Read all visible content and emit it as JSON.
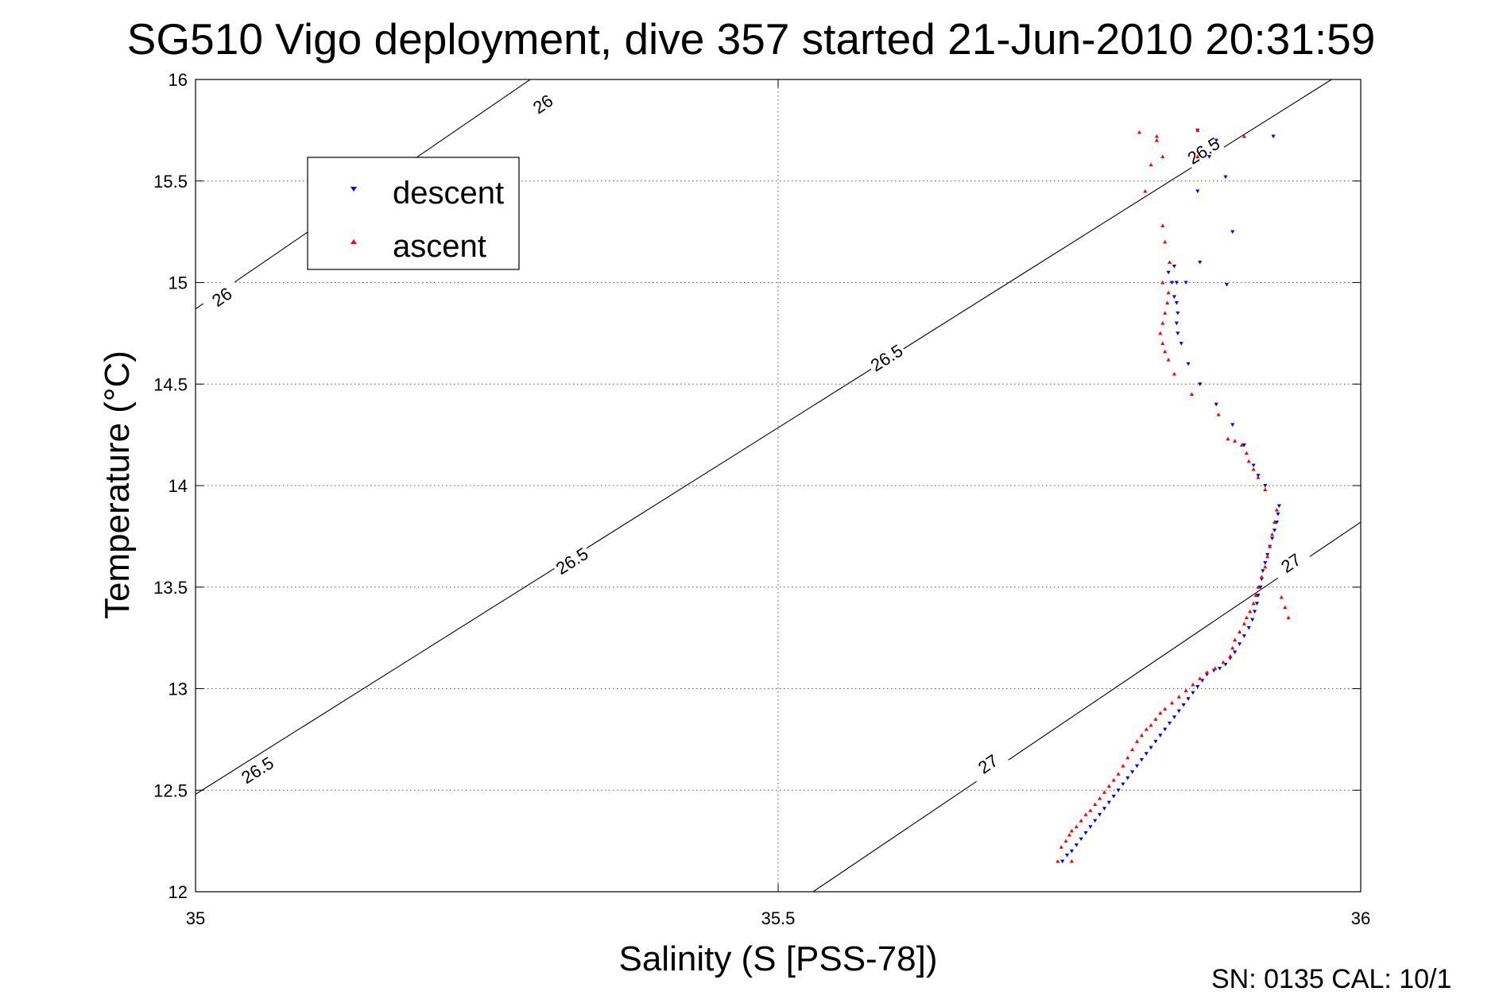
{
  "chart_data": {
    "type": "scatter",
    "title": "SG510 Vigo deployment, dive 357 started 21-Jun-2010 20:31:59",
    "xlabel": "Salinity (S [PSS-78])",
    "ylabel": "Temperature (°C)",
    "xlim": [
      35,
      36
    ],
    "ylim": [
      12,
      16
    ],
    "x_ticks": [
      "35",
      "35.5",
      "36"
    ],
    "y_ticks": [
      "12",
      "12.5",
      "13",
      "13.5",
      "14",
      "14.5",
      "15",
      "15.5",
      "16"
    ],
    "grid": true,
    "legend_position": "top-left",
    "footer": "SN: 0135  CAL: 10/1",
    "contours": [
      {
        "label": "26",
        "points": [
          [
            35.0,
            14.87
          ],
          [
            35.3,
            16.05
          ]
        ],
        "label_at": [
          [
            0.0225,
            14.93
          ],
          [
            0.298,
            15.88
          ]
        ]
      },
      {
        "label": "26.5",
        "points": [
          [
            35.0,
            12.48
          ],
          [
            35.975,
            16.0
          ]
        ],
        "label_at": [
          [
            0.053,
            12.6
          ],
          [
            0.323,
            13.63
          ],
          [
            0.593,
            14.63
          ],
          [
            0.865,
            15.65
          ]
        ]
      },
      {
        "label": "27",
        "points": [
          [
            35.53,
            12.0
          ],
          [
            36.0,
            13.82
          ]
        ],
        "label_at": [
          [
            0.68,
            12.63
          ],
          [
            0.94,
            13.62
          ]
        ]
      }
    ],
    "series": [
      {
        "name": "descent",
        "marker": "triangle-down",
        "color": "#0000ff",
        "points": [
          [
            35.744,
            12.15
          ],
          [
            35.748,
            12.18
          ],
          [
            35.752,
            12.2
          ],
          [
            35.756,
            12.23
          ],
          [
            35.76,
            12.26
          ],
          [
            35.764,
            12.29
          ],
          [
            35.768,
            12.32
          ],
          [
            35.772,
            12.35
          ],
          [
            35.776,
            12.38
          ],
          [
            35.78,
            12.41
          ],
          [
            35.784,
            12.44
          ],
          [
            35.788,
            12.47
          ],
          [
            35.792,
            12.5
          ],
          [
            35.796,
            12.53
          ],
          [
            35.8,
            12.56
          ],
          [
            35.804,
            12.59
          ],
          [
            35.808,
            12.62
          ],
          [
            35.812,
            12.65
          ],
          [
            35.816,
            12.68
          ],
          [
            35.82,
            12.71
          ],
          [
            35.824,
            12.74
          ],
          [
            35.828,
            12.77
          ],
          [
            35.832,
            12.8
          ],
          [
            35.836,
            12.83
          ],
          [
            35.84,
            12.86
          ],
          [
            35.844,
            12.89
          ],
          [
            35.848,
            12.92
          ],
          [
            35.852,
            12.95
          ],
          [
            35.856,
            12.98
          ],
          [
            35.86,
            13.01
          ],
          [
            35.864,
            13.04
          ],
          [
            35.868,
            13.07
          ],
          [
            35.874,
            13.09
          ],
          [
            35.879,
            13.1
          ],
          [
            35.884,
            13.12
          ],
          [
            35.888,
            13.15
          ],
          [
            35.892,
            13.18
          ],
          [
            35.896,
            13.22
          ],
          [
            35.9,
            13.26
          ],
          [
            35.904,
            13.3
          ],
          [
            35.907,
            13.34
          ],
          [
            35.909,
            13.38
          ],
          [
            35.911,
            13.42
          ],
          [
            35.912,
            13.46
          ],
          [
            35.914,
            13.5
          ],
          [
            35.915,
            13.54
          ],
          [
            35.916,
            13.58
          ],
          [
            35.918,
            13.62
          ],
          [
            35.92,
            13.66
          ],
          [
            35.922,
            13.7
          ],
          [
            35.924,
            13.74
          ],
          [
            35.926,
            13.78
          ],
          [
            35.928,
            13.82
          ],
          [
            35.929,
            13.86
          ],
          [
            35.93,
            13.9
          ],
          [
            35.918,
            14.0
          ],
          [
            35.912,
            14.05
          ],
          [
            35.908,
            14.1
          ],
          [
            35.9,
            14.2
          ],
          [
            35.89,
            14.3
          ],
          [
            35.876,
            14.4
          ],
          [
            35.862,
            14.5
          ],
          [
            35.852,
            14.6
          ],
          [
            35.846,
            14.7
          ],
          [
            35.843,
            14.75
          ],
          [
            35.842,
            14.8
          ],
          [
            35.843,
            14.85
          ],
          [
            35.842,
            14.9
          ],
          [
            35.84,
            14.93
          ],
          [
            35.838,
            15.0
          ],
          [
            35.842,
            15.0
          ],
          [
            35.85,
            15.0
          ],
          [
            35.84,
            15.08
          ],
          [
            35.835,
            15.05
          ],
          [
            35.862,
            15.1
          ],
          [
            35.885,
            14.99
          ],
          [
            35.89,
            15.25
          ],
          [
            35.884,
            15.52
          ],
          [
            35.86,
            15.45
          ],
          [
            35.87,
            15.62
          ],
          [
            35.86,
            15.75
          ],
          [
            35.876,
            15.7
          ],
          [
            35.925,
            15.72
          ]
        ]
      },
      {
        "name": "ascent",
        "marker": "triangle-up",
        "color": "#ff0000",
        "points": [
          [
            35.74,
            12.15
          ],
          [
            35.752,
            12.15
          ],
          [
            35.743,
            12.22
          ],
          [
            35.747,
            12.25
          ],
          [
            35.75,
            12.28
          ],
          [
            35.752,
            12.3
          ],
          [
            35.756,
            12.32
          ],
          [
            35.76,
            12.35
          ],
          [
            35.764,
            12.38
          ],
          [
            35.768,
            12.4
          ],
          [
            35.772,
            12.43
          ],
          [
            35.776,
            12.46
          ],
          [
            35.78,
            12.49
          ],
          [
            35.784,
            12.52
          ],
          [
            35.788,
            12.55
          ],
          [
            35.792,
            12.58
          ],
          [
            35.796,
            12.62
          ],
          [
            35.8,
            12.66
          ],
          [
            35.804,
            12.7
          ],
          [
            35.808,
            12.74
          ],
          [
            35.812,
            12.77
          ],
          [
            35.816,
            12.8
          ],
          [
            35.82,
            12.82
          ],
          [
            35.824,
            12.85
          ],
          [
            35.828,
            12.88
          ],
          [
            35.832,
            12.9
          ],
          [
            35.838,
            12.93
          ],
          [
            35.844,
            12.96
          ],
          [
            35.85,
            12.99
          ],
          [
            35.856,
            13.02
          ],
          [
            35.862,
            13.05
          ],
          [
            35.868,
            13.08
          ],
          [
            35.875,
            13.1
          ],
          [
            35.882,
            13.13
          ],
          [
            35.888,
            13.16
          ],
          [
            35.89,
            13.2
          ],
          [
            35.892,
            13.24
          ],
          [
            35.896,
            13.28
          ],
          [
            35.9,
            13.32
          ],
          [
            35.902,
            13.35
          ],
          [
            35.905,
            13.38
          ],
          [
            35.908,
            13.42
          ],
          [
            35.91,
            13.46
          ],
          [
            35.912,
            13.5
          ],
          [
            35.915,
            13.55
          ],
          [
            35.918,
            13.6
          ],
          [
            35.92,
            13.65
          ],
          [
            35.922,
            13.7
          ],
          [
            35.924,
            13.76
          ],
          [
            35.926,
            13.82
          ],
          [
            35.928,
            13.88
          ],
          [
            35.932,
            13.45
          ],
          [
            35.935,
            13.4
          ],
          [
            35.938,
            13.35
          ],
          [
            35.918,
            13.98
          ],
          [
            35.912,
            14.04
          ],
          [
            35.908,
            14.08
          ],
          [
            35.904,
            14.12
          ],
          [
            35.902,
            14.16
          ],
          [
            35.898,
            14.2
          ],
          [
            35.892,
            14.22
          ],
          [
            35.886,
            14.23
          ],
          [
            35.878,
            14.35
          ],
          [
            35.855,
            14.45
          ],
          [
            35.84,
            14.55
          ],
          [
            35.835,
            14.62
          ],
          [
            35.832,
            14.66
          ],
          [
            35.83,
            14.7
          ],
          [
            35.828,
            14.75
          ],
          [
            35.83,
            14.8
          ],
          [
            35.832,
            14.85
          ],
          [
            35.834,
            14.9
          ],
          [
            35.835,
            14.95
          ],
          [
            35.83,
            15.0
          ],
          [
            35.836,
            15.1
          ],
          [
            35.832,
            15.2
          ],
          [
            35.83,
            15.28
          ],
          [
            35.815,
            15.45
          ],
          [
            35.82,
            15.58
          ],
          [
            35.83,
            15.62
          ],
          [
            35.825,
            15.7
          ],
          [
            35.825,
            15.72
          ],
          [
            35.81,
            15.74
          ],
          [
            35.86,
            15.75
          ],
          [
            35.9,
            15.72
          ],
          [
            35.86,
            15.62
          ]
        ]
      }
    ]
  }
}
